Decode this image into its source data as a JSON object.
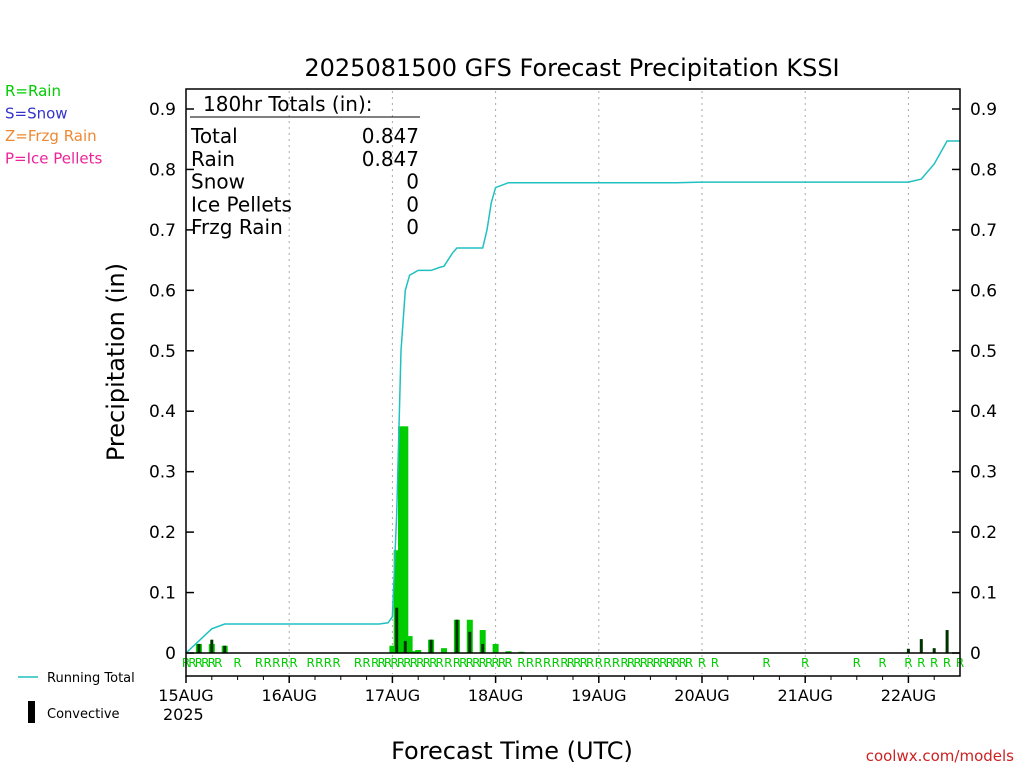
{
  "chart_data": {
    "type": "bar",
    "title": "2025081500 GFS Forecast Precipitation KSSI",
    "ylabel": "Precipitation (in)",
    "xlabel": "Forecast Time (UTC)",
    "ylim": [
      0,
      0.9
    ],
    "yticks": [
      "0",
      "0.1",
      "0.2",
      "0.3",
      "0.4",
      "0.5",
      "0.6",
      "0.7",
      "0.8",
      "0.9"
    ],
    "xticks": [
      "15AUG",
      "16AUG",
      "17AUG",
      "18AUG",
      "19AUG",
      "20AUG",
      "21AUG",
      "22AUG"
    ],
    "year_label": "2025",
    "legend": {
      "precip_types": [
        {
          "label": "R=Rain",
          "color": "#00cc00"
        },
        {
          "label": "S=Snow",
          "color": "#3333cc"
        },
        {
          "label": "Z=Frzg Rain",
          "color": "#ee8833"
        },
        {
          "label": "P=Ice Pellets",
          "color": "#ee2299"
        }
      ],
      "running_total": "Running Total",
      "convective": "Convective"
    },
    "totals": {
      "header": "180hr Totals (in):",
      "rows": [
        {
          "label": "Total",
          "value": "0.847"
        },
        {
          "label": "Rain",
          "value": "0.847"
        },
        {
          "label": "Snow",
          "value": "0"
        },
        {
          "label": "Ice Pellets",
          "value": "0"
        },
        {
          "label": "Frzg Rain",
          "value": "0"
        }
      ]
    },
    "credit": "coolwx.com/models",
    "colors": {
      "rain": "#00cc00",
      "convective": "#003300",
      "running_total": "#20c0c0",
      "grid": "#aaaaaa",
      "credit": "#cc2222"
    },
    "series": [
      {
        "name": "Rain",
        "hours": [
          3,
          6,
          9,
          48,
          49,
          50,
          51,
          52,
          53,
          54,
          57,
          60,
          63,
          66,
          69,
          72,
          75,
          78
        ],
        "values": [
          0.015,
          0.015,
          0.012,
          0.012,
          0.17,
          0.375,
          0.375,
          0.028,
          0.003,
          0.005,
          0.022,
          0.008,
          0.055,
          0.055,
          0.038,
          0.015,
          0.003,
          0.002
        ]
      },
      {
        "name": "Convective",
        "hours": [
          3,
          6,
          9,
          49,
          51,
          57,
          63,
          66,
          69,
          168,
          171,
          174,
          177
        ],
        "values": [
          0.015,
          0.022,
          0.012,
          0.075,
          0.02,
          0.022,
          0.055,
          0.035,
          0.015,
          0.007,
          0.023,
          0.008,
          0.038
        ]
      },
      {
        "name": "Running Total",
        "hours": [
          0,
          3,
          6,
          9,
          12,
          24,
          36,
          45,
          47,
          48,
          49,
          50,
          51,
          52,
          54,
          57,
          59,
          60,
          62,
          63,
          66,
          69,
          70,
          71,
          72,
          75,
          78,
          84,
          96,
          108,
          114,
          120,
          132,
          144,
          156,
          165,
          168,
          171,
          174,
          177,
          180
        ],
        "values": [
          0.0,
          0.02,
          0.04,
          0.048,
          0.048,
          0.048,
          0.048,
          0.048,
          0.05,
          0.06,
          0.23,
          0.5,
          0.6,
          0.625,
          0.633,
          0.633,
          0.638,
          0.64,
          0.662,
          0.67,
          0.67,
          0.67,
          0.7,
          0.745,
          0.77,
          0.778,
          0.778,
          0.778,
          0.778,
          0.778,
          0.778,
          0.779,
          0.779,
          0.779,
          0.779,
          0.779,
          0.779,
          0.784,
          0.809,
          0.847,
          0.847
        ]
      }
    ],
    "type_markers": {
      "letter": "R",
      "hours": [
        0,
        1.5,
        3,
        4.5,
        6,
        7.5,
        12,
        17,
        19,
        21,
        23,
        25,
        29,
        31,
        33,
        35,
        40,
        42,
        44,
        45.5,
        47,
        48.5,
        50,
        51.5,
        53,
        54.5,
        56,
        57.5,
        59,
        61,
        63,
        64.5,
        66,
        67.5,
        69,
        70.5,
        72,
        73.5,
        75,
        78,
        80,
        82,
        84,
        86,
        88,
        89.5,
        91,
        92.5,
        94,
        96,
        98,
        100,
        102,
        103.5,
        105,
        106.5,
        108,
        109.5,
        111,
        112.5,
        114,
        115.5,
        117,
        120,
        123,
        135,
        144,
        156,
        162,
        168,
        171,
        174,
        177,
        180
      ]
    }
  }
}
